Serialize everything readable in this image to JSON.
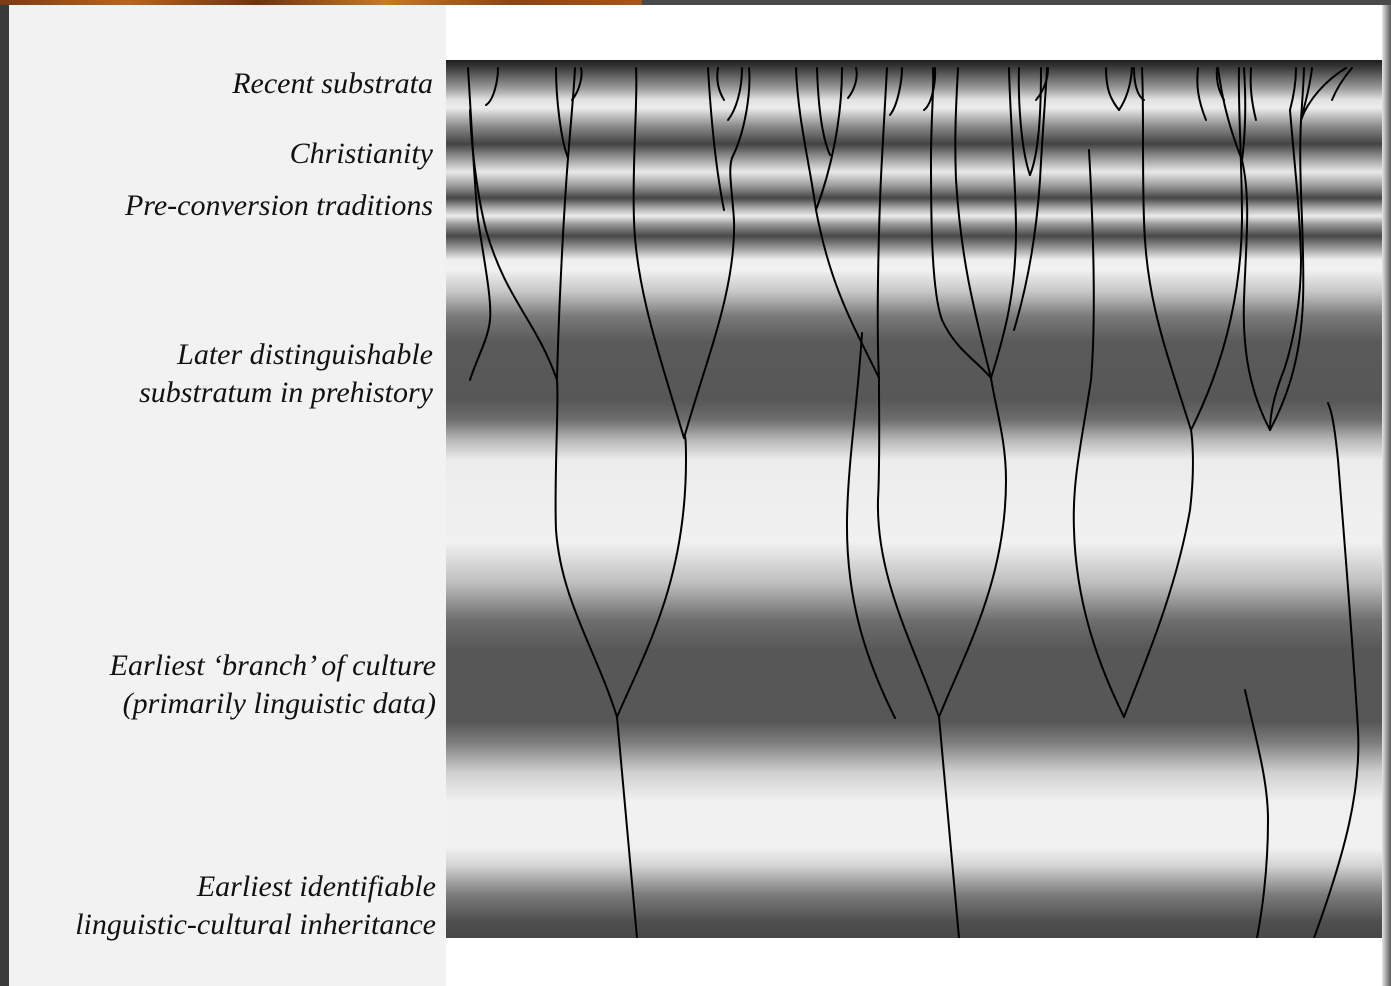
{
  "layers": [
    {
      "id": "recent",
      "label": "Recent substrata"
    },
    {
      "id": "christianity",
      "label": "Christianity"
    },
    {
      "id": "pre-conversion",
      "label": "Pre-conversion traditions"
    },
    {
      "id": "later-substratum",
      "label_lines": [
        "Later distinguishable",
        "substratum in prehistory"
      ]
    },
    {
      "id": "earliest-branch",
      "label_lines": [
        "Earliest ‘branch’ of culture",
        "(primarily linguistic data)"
      ]
    },
    {
      "id": "earliest-inheritance",
      "label_lines": [
        "Earliest identifiable",
        "linguistic-cultural inheritance"
      ]
    }
  ],
  "colors": {
    "label_panel": "#f2f2f2",
    "band_dark": "#575757",
    "band_light": "#f1f1f1",
    "lines": "#000000"
  }
}
